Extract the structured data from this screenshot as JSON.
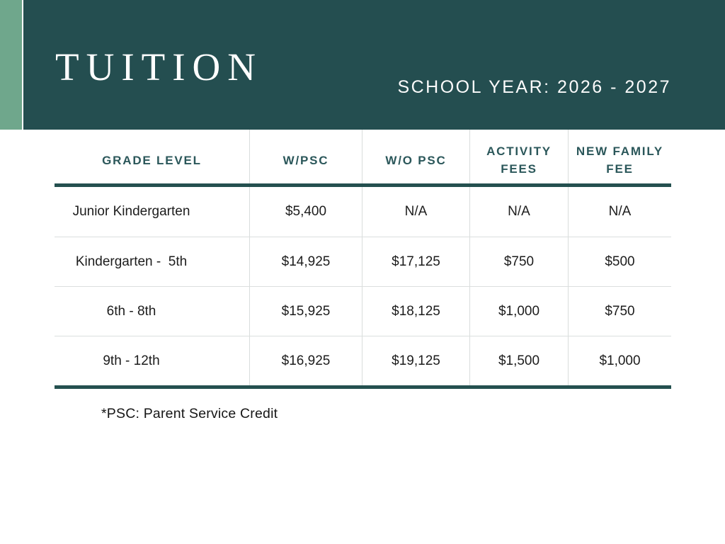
{
  "banner": {
    "title": "TUITION",
    "school_year": "SCHOOL YEAR: 2026 - 2027"
  },
  "colors": {
    "banner_bg": "#244E50",
    "accent_stripe": "#6FA78C",
    "table_header_text": "#2B575A",
    "table_rule": "#24504F",
    "body_text": "#1C1C1C"
  },
  "table": {
    "columns": [
      "GRADE LEVEL",
      "W/PSC",
      "W/O PSC",
      "ACTIVITY\nFEES",
      "NEW FAMILY\nFEE"
    ],
    "rows": [
      [
        "Junior Kindergarten",
        "$5,400",
        "N/A",
        "N/A",
        "N/A"
      ],
      [
        "Kindergarten -  5th",
        "$14,925",
        "$17,125",
        "$750",
        "$500"
      ],
      [
        "6th - 8th",
        "$15,925",
        "$18,125",
        "$1,000",
        "$750"
      ],
      [
        "9th - 12th",
        "$16,925",
        "$19,125",
        "$1,500",
        "$1,000"
      ]
    ]
  },
  "footnote": "*PSC: Parent Service Credit"
}
